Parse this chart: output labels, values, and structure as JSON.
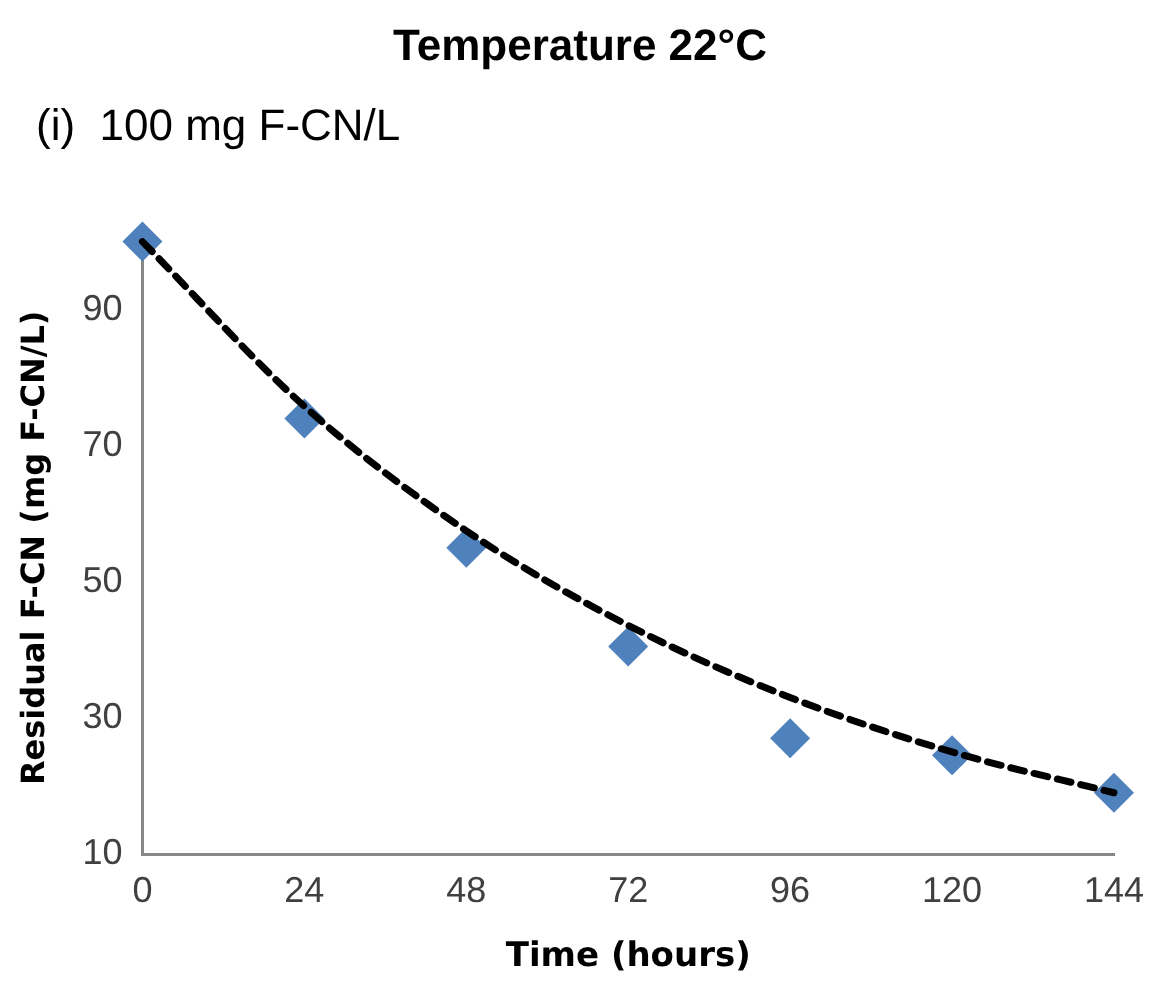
{
  "chart_data": {
    "type": "scatter",
    "title": "Temperature 22°C",
    "subtitle": "(i)  100 mg F-CN/L",
    "xlabel": "Time (hours)",
    "ylabel": "Residual F-CN (mg F-CN/L)",
    "x": [
      0,
      24,
      48,
      72,
      96,
      120,
      144
    ],
    "series": [
      {
        "type": "scatter",
        "color": "#4f81bd",
        "marker": "diamond",
        "values": [
          100,
          74,
          55,
          40.5,
          27,
          24.5,
          19
        ]
      },
      {
        "type": "line",
        "color": "#000000",
        "line_style": "dashed",
        "marker": "none",
        "x": [
          0,
          24,
          48,
          72,
          96,
          120,
          144
        ],
        "values": [
          100,
          75.8,
          57.5,
          43.6,
          33,
          25,
          19
        ]
      }
    ],
    "xlim": [
      0,
      144
    ],
    "xticks": [
      0,
      24,
      48,
      72,
      96,
      120,
      144
    ],
    "ylim": [
      10,
      100
    ],
    "yticks": [
      10,
      30,
      50,
      70,
      90
    ],
    "grid": false,
    "legend": false
  }
}
